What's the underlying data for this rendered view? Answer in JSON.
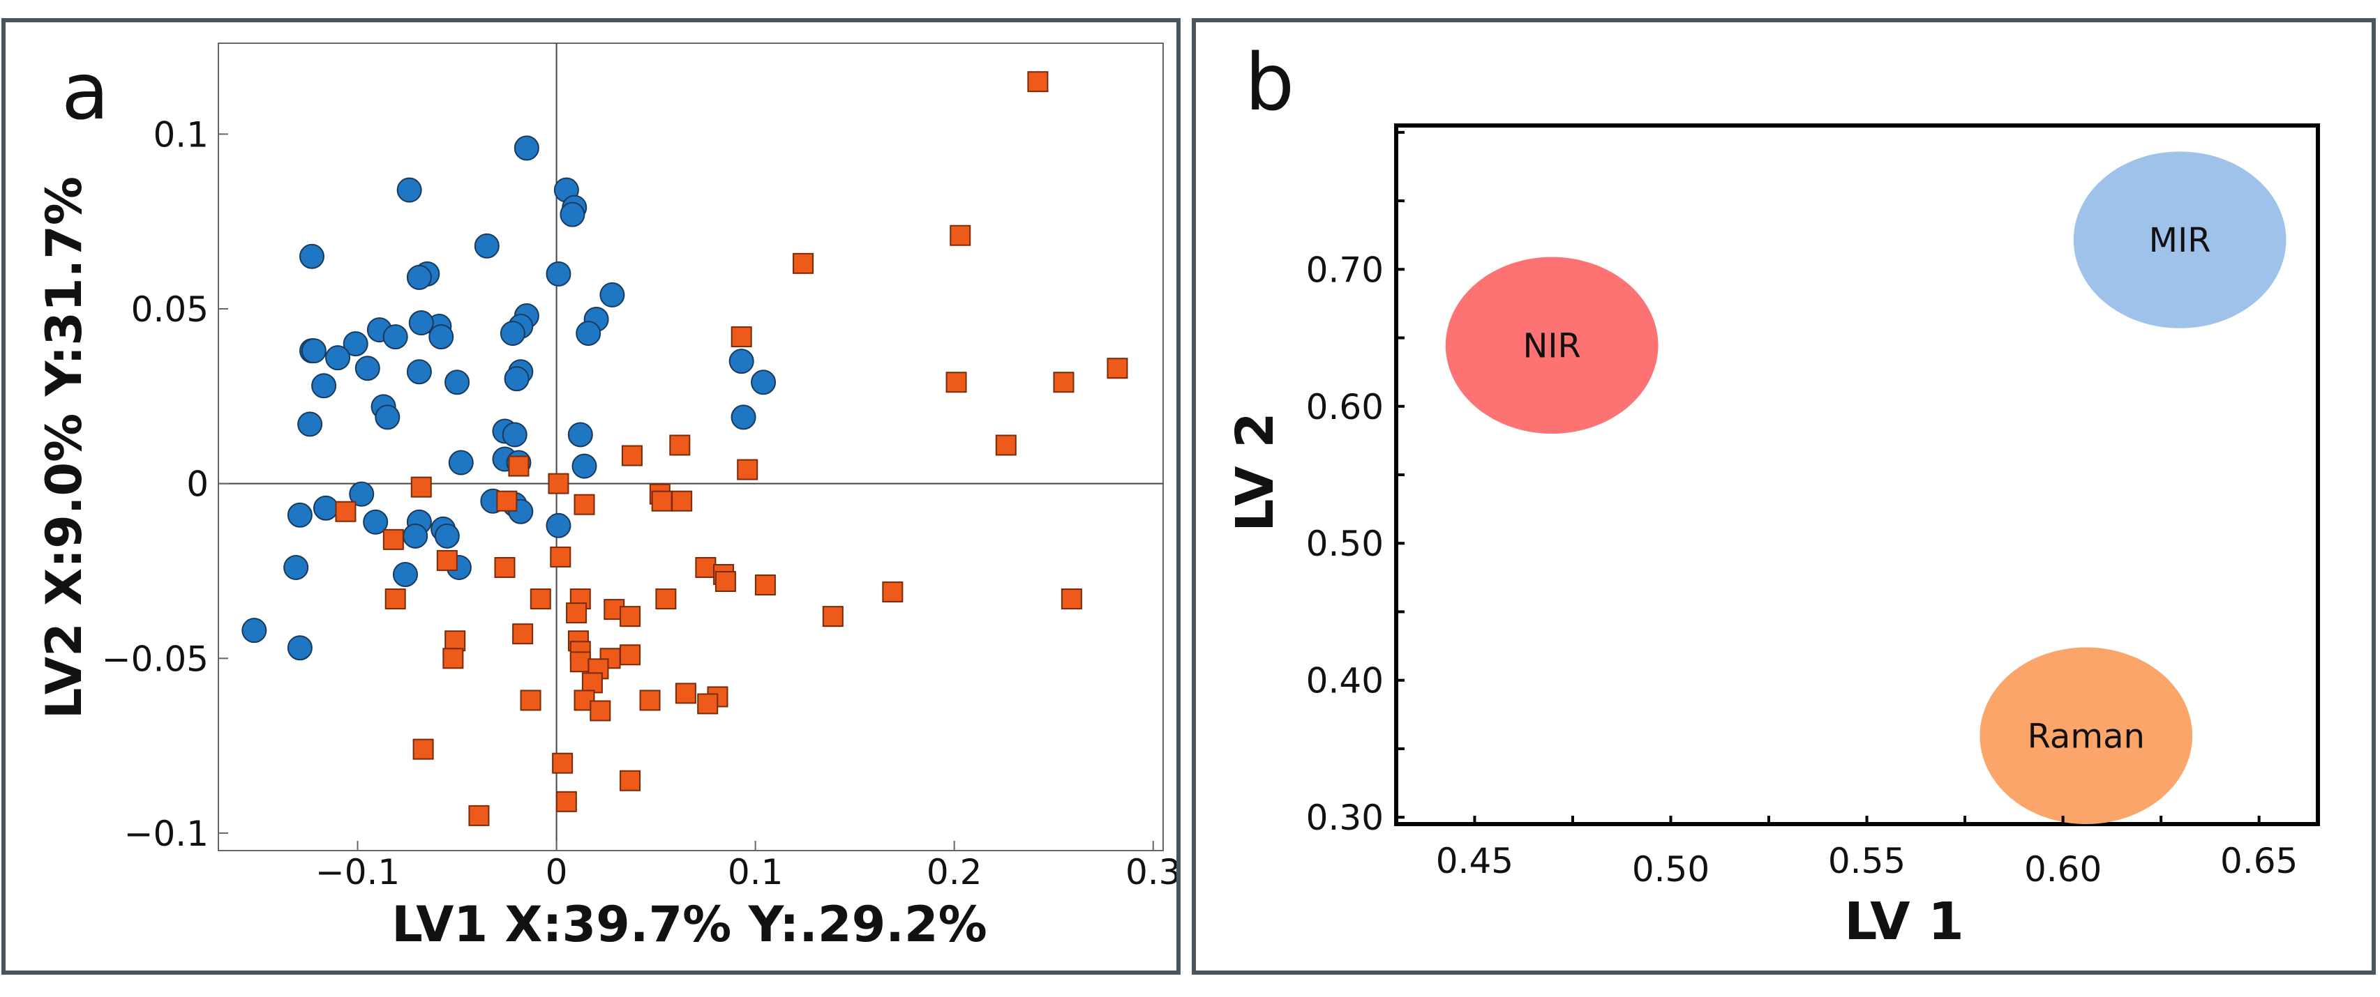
{
  "chart_data": [
    {
      "panel_label": "a",
      "type": "scatter",
      "xlabel": "LV1 X:39.7% Y:.29.2%",
      "ylabel": "LV2 X:9.0% Y:31.7%",
      "xlim": [
        -0.17,
        0.305
      ],
      "ylim": [
        -0.105,
        0.126
      ],
      "xticks": [
        {
          "value": -0.1,
          "label": "−0.1"
        },
        {
          "value": 0,
          "label": "0"
        },
        {
          "value": 0.1,
          "label": "0.1"
        },
        {
          "value": 0.2,
          "label": "0.2"
        },
        {
          "value": 0.3,
          "label": "0.3"
        }
      ],
      "yticks": [
        {
          "value": -0.1,
          "label": "−0.1"
        },
        {
          "value": -0.05,
          "label": "−0.05"
        },
        {
          "value": 0,
          "label": "0"
        },
        {
          "value": 0.05,
          "label": "0.05"
        },
        {
          "value": 0.1,
          "label": "0.1"
        }
      ],
      "series": [
        {
          "name": "circles",
          "marker": "circle",
          "color": "#1f77c4",
          "points": [
            [
              -0.015,
              0.096
            ],
            [
              -0.074,
              0.084
            ],
            [
              0.005,
              0.084
            ],
            [
              0.009,
              0.079
            ],
            [
              0.008,
              0.077
            ],
            [
              -0.035,
              0.068
            ],
            [
              -0.123,
              0.065
            ],
            [
              -0.065,
              0.06
            ],
            [
              -0.069,
              0.059
            ],
            [
              0.001,
              0.06
            ],
            [
              0.028,
              0.054
            ],
            [
              -0.015,
              0.048
            ],
            [
              0.02,
              0.047
            ],
            [
              -0.018,
              0.045
            ],
            [
              -0.059,
              0.045
            ],
            [
              -0.068,
              0.046
            ],
            [
              -0.089,
              0.044
            ],
            [
              -0.022,
              0.043
            ],
            [
              0.016,
              0.043
            ],
            [
              -0.081,
              0.042
            ],
            [
              -0.058,
              0.042
            ],
            [
              -0.101,
              0.04
            ],
            [
              -0.123,
              0.038
            ],
            [
              -0.122,
              0.038
            ],
            [
              -0.11,
              0.036
            ],
            [
              -0.095,
              0.033
            ],
            [
              -0.069,
              0.032
            ],
            [
              -0.018,
              0.032
            ],
            [
              -0.05,
              0.029
            ],
            [
              -0.02,
              0.03
            ],
            [
              -0.117,
              0.028
            ],
            [
              0.093,
              0.035
            ],
            [
              0.104,
              0.029
            ],
            [
              -0.087,
              0.022
            ],
            [
              0.094,
              0.019
            ],
            [
              -0.085,
              0.019
            ],
            [
              -0.124,
              0.017
            ],
            [
              -0.026,
              0.015
            ],
            [
              -0.021,
              0.014
            ],
            [
              0.012,
              0.014
            ],
            [
              0.014,
              0.005
            ],
            [
              -0.048,
              0.006
            ],
            [
              -0.026,
              0.007
            ],
            [
              -0.019,
              0.006
            ],
            [
              -0.032,
              -0.005
            ],
            [
              -0.098,
              -0.003
            ],
            [
              -0.116,
              -0.007
            ],
            [
              -0.129,
              -0.009
            ],
            [
              -0.021,
              -0.006
            ],
            [
              -0.018,
              -0.008
            ],
            [
              -0.091,
              -0.011
            ],
            [
              -0.057,
              -0.013
            ],
            [
              -0.069,
              -0.011
            ],
            [
              -0.071,
              -0.015
            ],
            [
              -0.055,
              -0.015
            ],
            [
              0.001,
              -0.012
            ],
            [
              -0.076,
              -0.026
            ],
            [
              -0.131,
              -0.024
            ],
            [
              -0.049,
              -0.024
            ],
            [
              -0.152,
              -0.042
            ],
            [
              -0.129,
              -0.047
            ]
          ]
        },
        {
          "name": "squares",
          "marker": "square",
          "color": "#ee5a1a",
          "points": [
            [
              0.242,
              0.115
            ],
            [
              0.203,
              0.071
            ],
            [
              0.124,
              0.063
            ],
            [
              0.282,
              0.033
            ],
            [
              0.093,
              0.042
            ],
            [
              0.201,
              0.029
            ],
            [
              0.255,
              0.029
            ],
            [
              0.226,
              0.011
            ],
            [
              0.062,
              0.011
            ],
            [
              0.038,
              0.008
            ],
            [
              0.096,
              0.004
            ],
            [
              -0.019,
              0.005
            ],
            [
              0.001,
              0.0
            ],
            [
              -0.068,
              -0.001
            ],
            [
              0.052,
              -0.003
            ],
            [
              0.063,
              -0.005
            ],
            [
              0.053,
              -0.005
            ],
            [
              -0.025,
              -0.005
            ],
            [
              0.014,
              -0.006
            ],
            [
              -0.106,
              -0.008
            ],
            [
              -0.082,
              -0.016
            ],
            [
              0.002,
              -0.021
            ],
            [
              -0.055,
              -0.022
            ],
            [
              -0.026,
              -0.024
            ],
            [
              0.075,
              -0.024
            ],
            [
              0.084,
              -0.026
            ],
            [
              0.085,
              -0.028
            ],
            [
              0.105,
              -0.029
            ],
            [
              0.169,
              -0.031
            ],
            [
              0.259,
              -0.033
            ],
            [
              0.055,
              -0.033
            ],
            [
              -0.081,
              -0.033
            ],
            [
              -0.008,
              -0.033
            ],
            [
              0.012,
              -0.033
            ],
            [
              0.01,
              -0.037
            ],
            [
              0.029,
              -0.036
            ],
            [
              0.037,
              -0.038
            ],
            [
              0.139,
              -0.038
            ],
            [
              -0.017,
              -0.043
            ],
            [
              0.011,
              -0.045
            ],
            [
              -0.051,
              -0.045
            ],
            [
              0.012,
              -0.048
            ],
            [
              0.037,
              -0.049
            ],
            [
              -0.052,
              -0.05
            ],
            [
              0.012,
              -0.051
            ],
            [
              0.027,
              -0.05
            ],
            [
              0.021,
              -0.053
            ],
            [
              0.018,
              -0.057
            ],
            [
              0.065,
              -0.06
            ],
            [
              0.081,
              -0.061
            ],
            [
              -0.013,
              -0.062
            ],
            [
              0.014,
              -0.062
            ],
            [
              0.047,
              -0.062
            ],
            [
              0.076,
              -0.063
            ],
            [
              0.022,
              -0.065
            ],
            [
              -0.067,
              -0.076
            ],
            [
              0.003,
              -0.08
            ],
            [
              0.037,
              -0.085
            ],
            [
              0.005,
              -0.091
            ],
            [
              -0.039,
              -0.095
            ]
          ]
        }
      ]
    },
    {
      "panel_label": "b",
      "type": "scatter",
      "xlabel": "LV 1",
      "ylabel": "LV 2",
      "xlim": [
        0.43,
        0.665
      ],
      "ylim": [
        0.295,
        0.805
      ],
      "xticks": [
        {
          "value": 0.45,
          "label": "0.45"
        },
        {
          "value": 0.5,
          "label": "0.50"
        },
        {
          "value": 0.55,
          "label": "0.55"
        },
        {
          "value": 0.6,
          "label": "0.60"
        },
        {
          "value": 0.65,
          "label": "0.65"
        }
      ],
      "yticks": [
        {
          "value": 0.3,
          "label": "0.30"
        },
        {
          "value": 0.4,
          "label": "0.40"
        },
        {
          "value": 0.5,
          "label": "0.50"
        },
        {
          "value": 0.6,
          "label": "0.60"
        },
        {
          "value": 0.7,
          "label": "0.70"
        }
      ],
      "clusters": [
        {
          "label": "NIR",
          "center": [
            0.4697,
            0.6445
          ],
          "radius": [
            0.0271,
            0.0645
          ],
          "color": "#fd7373"
        },
        {
          "label": "MIR",
          "center": [
            0.6298,
            0.7215
          ],
          "radius": [
            0.0271,
            0.0645
          ],
          "color": "#9fc2ea"
        },
        {
          "label": "Raman",
          "center": [
            0.6059,
            0.3595
          ],
          "radius": [
            0.0271,
            0.0645
          ],
          "color": "#fca56a"
        }
      ]
    }
  ]
}
